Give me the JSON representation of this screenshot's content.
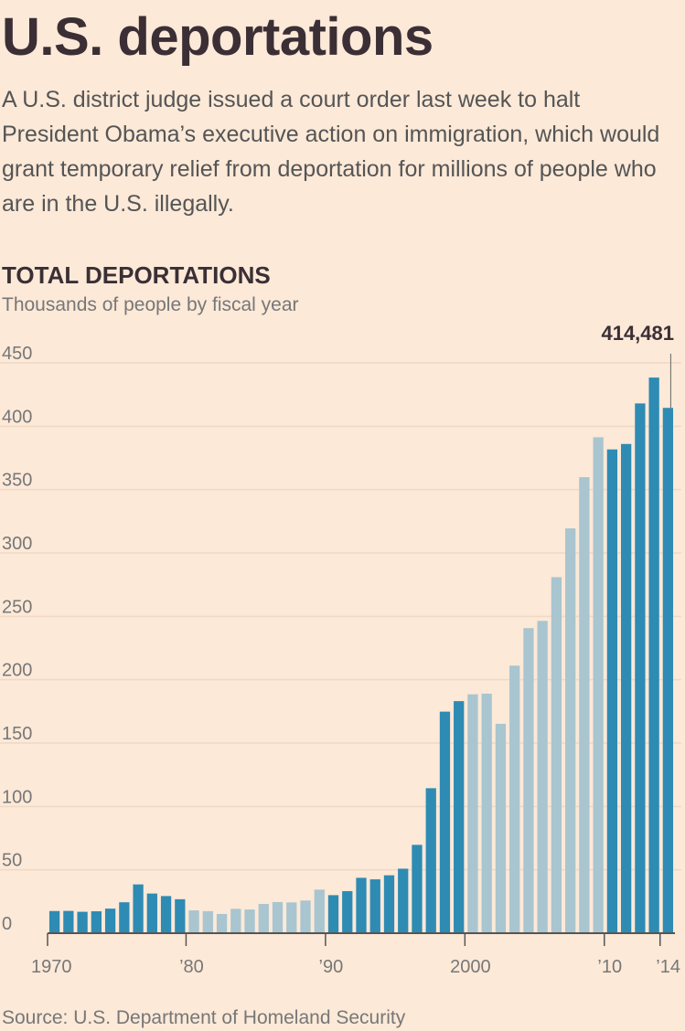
{
  "headline": "U.S. deportations",
  "dek": "A U.S. district judge issued a court order last week to halt President Obama’s executive action on immigration, which would grant temporary relief from deportation for millions of people who are in the U.S. illegally.",
  "source": "Source: U.S. Department of Homeland Security",
  "colors": {
    "background": "#fce9d8",
    "bar_dark": "#2e8bb3",
    "bar_light": "#a9c5cf",
    "gridline": "#f0d8c2"
  },
  "chart_data": {
    "type": "bar",
    "title": "TOTAL DEPORTATIONS",
    "subtitle": "Thousands of people by fiscal year",
    "ylim": [
      0,
      450
    ],
    "yticks": [
      0,
      50,
      100,
      150,
      200,
      250,
      300,
      350,
      400,
      450
    ],
    "grid": true,
    "x": [
      1970,
      1971,
      1972,
      1973,
      1974,
      1975,
      1976,
      1977,
      1978,
      1979,
      1980,
      1981,
      1982,
      1983,
      1984,
      1985,
      1986,
      1987,
      1988,
      1989,
      1990,
      1991,
      1992,
      1993,
      1994,
      1995,
      1996,
      1997,
      1998,
      1999,
      2000,
      2001,
      2002,
      2003,
      2004,
      2005,
      2006,
      2007,
      2008,
      2009,
      2010,
      2011,
      2012,
      2013,
      2014
    ],
    "values": [
      17.5,
      17.6,
      16.9,
      17.3,
      19.4,
      24.4,
      38.5,
      31.3,
      29.3,
      26.8,
      18.0,
      17.4,
      15.2,
      19.2,
      18.7,
      23.1,
      24.6,
      24.3,
      25.8,
      34.4,
      30.0,
      33.2,
      43.7,
      42.5,
      45.7,
      50.9,
      69.7,
      114.4,
      174.8,
      183.1,
      188.5,
      189.0,
      165.2,
      211.1,
      240.7,
      246.4,
      280.9,
      319.4,
      359.8,
      391.3,
      381.7,
      386.0,
      418.0,
      438.4,
      414.481
    ],
    "shading": [
      "dark",
      "dark",
      "dark",
      "dark",
      "dark",
      "dark",
      "dark",
      "dark",
      "dark",
      "dark",
      "light",
      "light",
      "light",
      "light",
      "light",
      "light",
      "light",
      "light",
      "light",
      "light",
      "dark",
      "dark",
      "dark",
      "dark",
      "dark",
      "dark",
      "dark",
      "dark",
      "dark",
      "dark",
      "light",
      "light",
      "light",
      "light",
      "light",
      "light",
      "light",
      "light",
      "light",
      "light",
      "dark",
      "dark",
      "dark",
      "dark",
      "dark"
    ],
    "xtick_labels": [
      {
        "year": 1970,
        "label": "1970"
      },
      {
        "year": 1980,
        "label": "’80"
      },
      {
        "year": 1990,
        "label": "’90"
      },
      {
        "year": 2000,
        "label": "2000"
      },
      {
        "year": 2010,
        "label": "’10"
      },
      {
        "year": 2014,
        "label": "’14"
      }
    ],
    "annotation": {
      "year": 2014,
      "text": "414,481"
    }
  }
}
